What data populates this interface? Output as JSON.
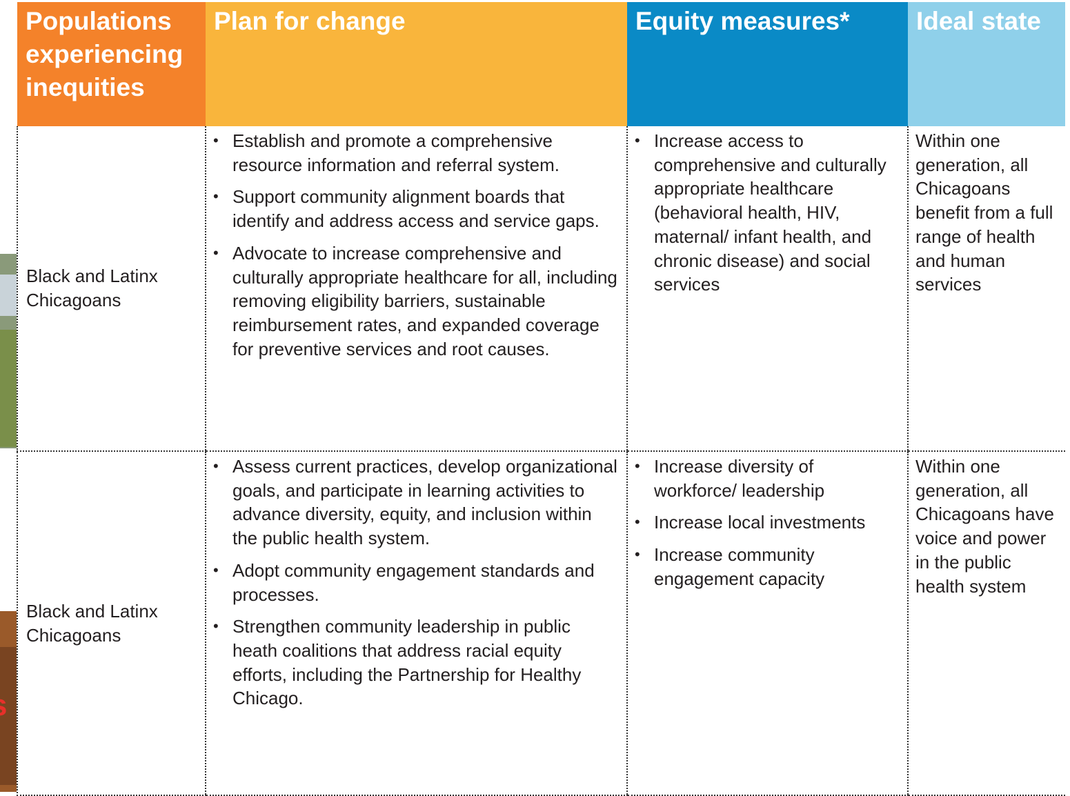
{
  "left_fragment": "s",
  "header": [
    "Populations experiencing inequities",
    "Plan for change",
    "Equity measures*",
    "Ideal state"
  ],
  "rows": [
    {
      "population": "Black and Latinx Chicagoans",
      "plan": [
        "Establish and promote a comprehensive resource information and referral system.",
        "Support community alignment boards that identify and address access and service gaps.",
        "Advocate to increase comprehensive and culturally appropriate healthcare for all, including removing eligibility barriers, sustainable reimbursement rates, and expanded coverage for preventive services and root causes."
      ],
      "measures": [
        "Increase access to comprehensive and culturally appropriate healthcare (behavioral health, HIV, maternal/ infant health, and chronic disease) and social services"
      ],
      "ideal": "Within one generation, all Chicagoans benefit from a full range of health and human services"
    },
    {
      "population": "Black and Latinx Chicagoans",
      "plan": [
        "Assess current practices, develop organizational goals, and participate in learning activities to advance diversity, equity, and inclusion within the public health system.",
        "Adopt community engagement standards and processes.",
        "Strengthen community leadership in public heath coalitions that address racial equity efforts, including the Partnership for Healthy Chicago."
      ],
      "measures": [
        "Increase diversity of workforce/ leadership",
        "Increase local investments",
        "Increase community engagement capacity"
      ],
      "ideal": "Within one generation, all Chicagoans have voice and power in the public health system"
    }
  ]
}
